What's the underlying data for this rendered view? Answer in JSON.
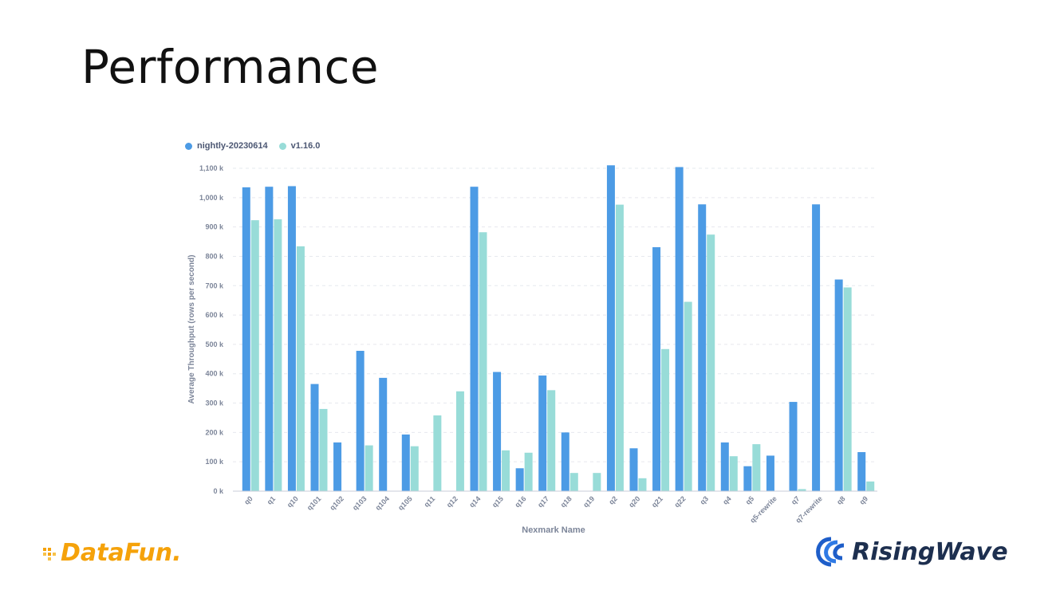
{
  "slide": {
    "title": "Performance"
  },
  "logos": {
    "left": "DataFun.",
    "right": "RisingWave"
  },
  "colors": {
    "nightly": "#4c9be5",
    "v1": "#98dcd8",
    "grid": "#e6e8ee",
    "axis_text": "#7c8599"
  },
  "chart_data": {
    "type": "bar",
    "xlabel": "Nexmark Name",
    "ylabel": "Average Throughput (rows per second)",
    "ylim": [
      0,
      1100000
    ],
    "yticks": [
      {
        "v": 0,
        "label": "0 k"
      },
      {
        "v": 100000,
        "label": "100 k"
      },
      {
        "v": 200000,
        "label": "200 k"
      },
      {
        "v": 300000,
        "label": "300 k"
      },
      {
        "v": 400000,
        "label": "400 k"
      },
      {
        "v": 500000,
        "label": "500 k"
      },
      {
        "v": 600000,
        "label": "600 k"
      },
      {
        "v": 700000,
        "label": "700 k"
      },
      {
        "v": 800000,
        "label": "800 k"
      },
      {
        "v": 900000,
        "label": "900 k"
      },
      {
        "v": 1000000,
        "label": "1,000 k"
      },
      {
        "v": 1100000,
        "label": "1,100 k"
      }
    ],
    "grid": true,
    "legend_position": "top-left",
    "categories": [
      "q0",
      "q1",
      "q10",
      "q101",
      "q102",
      "q103",
      "q104",
      "q105",
      "q11",
      "q12",
      "q14",
      "q15",
      "q16",
      "q17",
      "q18",
      "q19",
      "q2",
      "q20",
      "q21",
      "q22",
      "q3",
      "q4",
      "q5",
      "q5-rewrite",
      "q7",
      "q7-rewrite",
      "q8",
      "q9"
    ],
    "series": [
      {
        "name": "nightly-20230614",
        "color": "#4c9be5",
        "values": [
          1035000,
          1037000,
          1039000,
          365000,
          166000,
          478000,
          386000,
          193000,
          null,
          null,
          1037000,
          406000,
          78000,
          394000,
          200000,
          null,
          1110000,
          146000,
          831000,
          1104000,
          977000,
          166000,
          85000,
          121000,
          304000,
          977000,
          721000,
          133000
        ]
      },
      {
        "name": "v1.16.0",
        "color": "#98dcd8",
        "values": [
          923000,
          926000,
          834000,
          280000,
          null,
          156000,
          null,
          153000,
          258000,
          340000,
          882000,
          139000,
          131000,
          344000,
          62000,
          62000,
          976000,
          44000,
          484000,
          645000,
          874000,
          119000,
          160000,
          null,
          7000,
          null,
          694000,
          33000
        ]
      }
    ]
  }
}
